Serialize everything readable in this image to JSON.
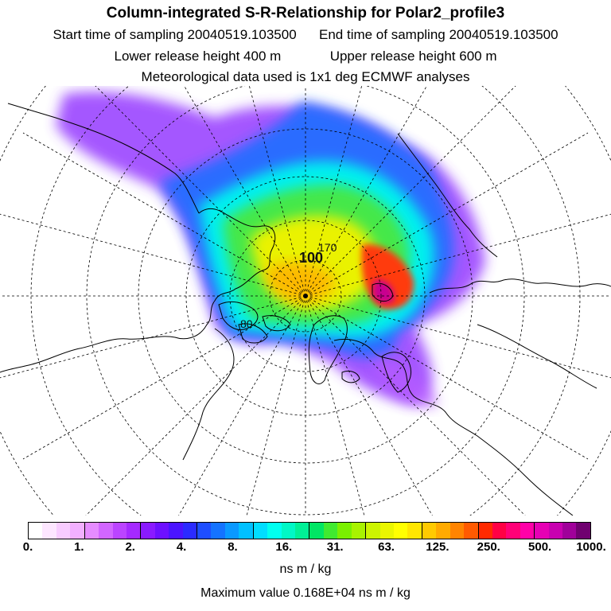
{
  "header": {
    "title": "Column-integrated S-R-Relationship for Polar2_profile3",
    "start_time": "Start time of sampling 20040519.103500",
    "end_time": "End time of sampling 20040519.103500",
    "lower_release": "Lower release height  400 m",
    "upper_release": "Upper release height  600 m",
    "met_data": "Meteorological data used is 1x1 deg ECMWF analyses"
  },
  "map": {
    "projection": "polar stereographic, North Pole",
    "pole_labels": [
      "100",
      "170"
    ],
    "contour_labels": [
      "80"
    ]
  },
  "legend": {
    "ticks": [
      "0.",
      "1.",
      "2.",
      "4.",
      "8.",
      "16.",
      "31.",
      "63.",
      "125.",
      "250.",
      "500.",
      "1000."
    ],
    "colors": [
      "#ffffff",
      "#fde6ff",
      "#f8ccff",
      "#f2b0ff",
      "#e68cff",
      "#d266ff",
      "#bb44ff",
      "#a52aff",
      "#8a1aff",
      "#6d10ff",
      "#4b14ff",
      "#2b2bff",
      "#1e4eff",
      "#1473ff",
      "#0a99ff",
      "#00c0ff",
      "#00ddff",
      "#00fff0",
      "#00f8c6",
      "#00f096",
      "#00e664",
      "#40ea30",
      "#7af000",
      "#a8f200",
      "#ccf400",
      "#eaf600",
      "#ffff00",
      "#ffe600",
      "#ffca00",
      "#ffaa00",
      "#ff8400",
      "#ff5a00",
      "#ff2a00",
      "#ff0044",
      "#ff0077",
      "#ff00a8",
      "#e600b4",
      "#c800b0",
      "#a0009a",
      "#700070"
    ],
    "unit": "ns m / kg",
    "max_value": "Maximum value  0.168E+04 ns m / kg"
  }
}
